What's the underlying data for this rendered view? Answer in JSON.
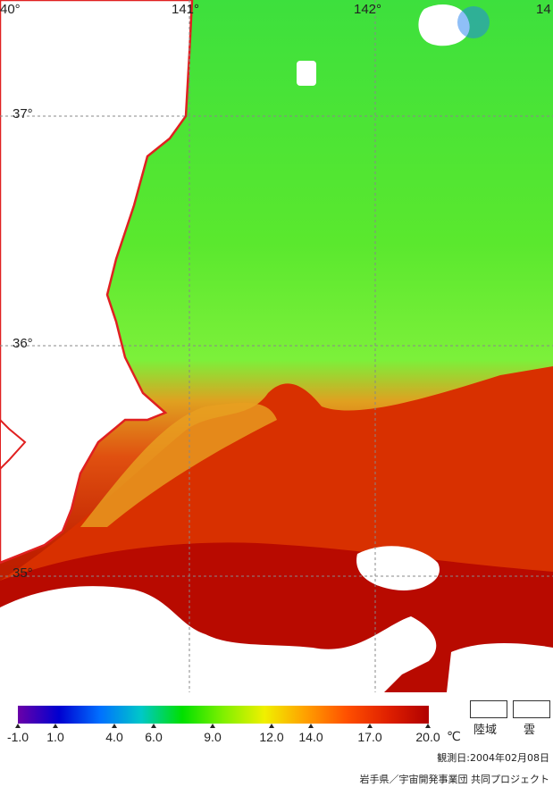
{
  "map": {
    "lon_labels": [
      "40°",
      "141°",
      "142°",
      "14"
    ],
    "lat_labels": [
      "37°",
      "36°",
      "35°"
    ]
  },
  "legend": {
    "colors": [
      "#6a00a8",
      "#0000d0",
      "#0070ff",
      "#00c8c8",
      "#00e000",
      "#80f000",
      "#f0f000",
      "#ffa000",
      "#ff5000",
      "#e02000",
      "#b00000"
    ],
    "ticks": [
      "-1.0",
      "1.0",
      "4.0",
      "6.0",
      "9.0",
      "12.0",
      "14.0",
      "17.0",
      "20.0"
    ],
    "unit": "℃",
    "land_label": "陸域",
    "cloud_label": "雲"
  },
  "observation_date": "観測日:2004年02月08日",
  "credit": "岩手県／宇宙開発事業団 共同プロジェクト"
}
